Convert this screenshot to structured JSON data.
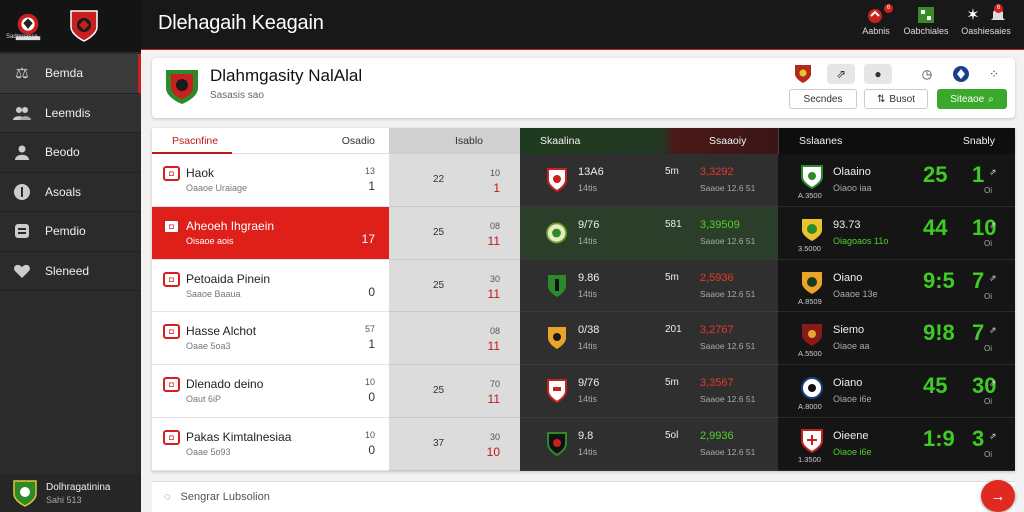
{
  "window": {
    "title": "Dlehagaih Keagain"
  },
  "sidebar": {
    "logo_caption": "Sadmgasse",
    "items": [
      {
        "label": "Bemda",
        "icon": "scale-icon"
      },
      {
        "label": "Leemdis",
        "icon": "people-icon"
      },
      {
        "label": "Beodo",
        "icon": "person-icon"
      },
      {
        "label": "Asoals",
        "icon": "info-icon"
      },
      {
        "label": "Pemdio",
        "icon": "bookmark-icon"
      },
      {
        "label": "Sleneed",
        "icon": "heart-icon"
      }
    ],
    "footer": {
      "name": "Dolhragatinina",
      "sub": "Sahi 513"
    }
  },
  "topbar": {
    "actions": [
      {
        "label": "Aabnis",
        "badge": "6"
      },
      {
        "label": "Oabchiales",
        "badge": ""
      },
      {
        "label": "Oashiesaies",
        "badge": "6"
      }
    ]
  },
  "header": {
    "title": "Dlahmgasity NalAlal",
    "subtitle": "Sasasis sao",
    "btn_one": "Secndes",
    "btn_two": "Busot",
    "btn_primary": "Siteaoe"
  },
  "table": {
    "headers": {
      "a_left": "Psacnfine",
      "a_right": "Osadio",
      "b": "Isablo",
      "c_left": "Skaalina",
      "c_right": "Ssaaoiy",
      "d_left": "Sslaanes",
      "d_right": "Snably"
    },
    "rows": [
      {
        "name": "Haok",
        "sub": "Oaaoe Uraiage",
        "v_top": "13",
        "v_bot": "1",
        "b_val": "22",
        "b_top": "10",
        "b_bot": "1",
        "c_v1": "13A6",
        "c_v2": "14tis",
        "c_v3": "5m",
        "c_v4": "3,3292",
        "c_v5": "Saaoe 12.6 51",
        "d_name": "Olaaino",
        "d_sub": "Oiaoo iaa",
        "d_lab": "A.3500",
        "big1": "25",
        "big2": "1",
        "d_small": "Oi"
      },
      {
        "name": "Aheoeh Ihgraein",
        "sub": "Oisaoe aois",
        "v_top": "",
        "v_bot": "17",
        "b_val": "25",
        "b_top": "08",
        "b_bot": "11",
        "c_v1": "9/76",
        "c_v2": "14tis",
        "c_v3": "581",
        "c_v4": "3,39509",
        "c_v5": "Saaoe 12.6 51",
        "d_name": "93.73",
        "d_sub": "Oiagoaos 11o",
        "d_lab": "3.5000",
        "big1": "44",
        "big2": "10",
        "d_small": "Oi"
      },
      {
        "name": "Petoaida Pinein",
        "sub": "Saaoe Baaua",
        "v_top": "",
        "v_bot": "0",
        "b_val": "25",
        "b_top": "30",
        "b_bot": "11",
        "c_v1": "9.86",
        "c_v2": "14tis",
        "c_v3": "5m",
        "c_v4": "2,5936",
        "c_v5": "Saaoe 12.6 51",
        "d_name": "Oiano",
        "d_sub": "Oaaoe 13e",
        "d_lab": "A.8509",
        "big1": "9:5",
        "big2": "7",
        "d_small": "Oi"
      },
      {
        "name": "Hasse Alchot",
        "sub": "Oaae 5oa3",
        "v_top": "57",
        "v_bot": "1",
        "b_val": "",
        "b_top": "08",
        "b_bot": "11",
        "c_v1": "0/38",
        "c_v2": "14tis",
        "c_v3": "201",
        "c_v4": "3,2767",
        "c_v5": "Saaoe 12.6 51",
        "d_name": "Siemo",
        "d_sub": "Oiaoe aa",
        "d_lab": "A.5500",
        "big1": "9!8",
        "big2": "7",
        "d_small": "Oi"
      },
      {
        "name": "Dlenado deino",
        "sub": "Oaut 6iP",
        "v_top": "10",
        "v_bot": "0",
        "b_val": "25",
        "b_top": "70",
        "b_bot": "11",
        "c_v1": "9/76",
        "c_v2": "14tis",
        "c_v3": "5m",
        "c_v4": "3,3567",
        "c_v5": "Saaoe 12.6 51",
        "d_name": "Oiano",
        "d_sub": "Oiaoe i6e",
        "d_lab": "A.8000",
        "big1": "45",
        "big2": "30",
        "d_small": "Oi"
      },
      {
        "name": "Pakas Kimtalnesiaa",
        "sub": "Oaae 5o93",
        "v_top": "10",
        "v_bot": "0",
        "b_val": "37",
        "b_top": "30",
        "b_bot": "10",
        "c_v1": "9.8",
        "c_v2": "14tis",
        "c_v3": "5ol",
        "c_v4": "2,9936",
        "c_v5": "Saaoe 12.6 51",
        "d_name": "Oieene",
        "d_sub": "Oiaoe i6e",
        "d_lab": "1.3500",
        "big1": "1:9",
        "big2": "3",
        "d_small": "Oi"
      }
    ]
  },
  "bottombar": {
    "label": "Sengrar Lubsolion"
  },
  "colors": {
    "accent": "#df1f1a",
    "green": "#3dcc24",
    "dark": "#181818"
  }
}
